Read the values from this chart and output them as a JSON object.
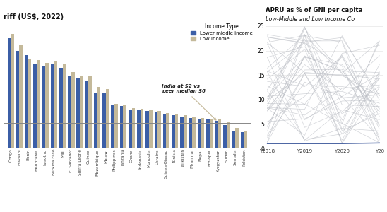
{
  "bar_title": "riff (US$, 2022)",
  "line_title": "APRU as % of GNI per capita",
  "line_subtitle": "Low-Middle and Low Income Co",
  "legend_lower_middle": "Lower middle income",
  "legend_low": "Low income",
  "annotation_text": "India at $2 vs\npeer median $6",
  "median_line_y": 6.0,
  "bar_ylim": [
    0,
    30
  ],
  "line_ylim": [
    0,
    26
  ],
  "line_yticks": [
    0,
    5,
    10,
    15,
    20,
    25
  ],
  "line_xticks": [
    "Y2018",
    "Y2019",
    "Y2020",
    "Y20"
  ],
  "countries": [
    "Congo",
    "Eswalini",
    "Bonin",
    "Mauritania",
    "Lesotho",
    "Burkina Faso",
    "Mali",
    "El Salvador",
    "Sierra Leone",
    "Guinea",
    "Mozambique",
    "Malawi",
    "Philippines",
    "Tanzania",
    "Ghana",
    "Indonesia",
    "Mongolia",
    "Ukraine",
    "Guinea-Bissau",
    "Tunisia",
    "Tajikistan",
    "Myanmar",
    "Nepal",
    "Ethiopia",
    "Kyrgyzstan",
    "Sudan",
    "Somalia",
    "Pakistan"
  ],
  "blue_values": [
    26,
    23,
    22,
    20,
    19.5,
    20,
    19,
    17,
    16.5,
    16,
    13,
    13,
    10.2,
    10,
    9.2,
    9.0,
    8.8,
    8.5,
    8.0,
    7.8,
    7.5,
    7.2,
    7.0,
    6.8,
    6.5,
    5.5,
    4.2,
    3.8
  ],
  "tan_values": [
    27,
    24.5,
    21,
    20.8,
    20.2,
    20.5,
    19.8,
    18,
    17.2,
    17,
    14.5,
    14,
    10.5,
    10.3,
    9.5,
    9.3,
    9.1,
    8.8,
    8.3,
    8.0,
    7.8,
    7.5,
    7.2,
    7.0,
    6.8,
    6.2,
    4.8,
    4.0
  ],
  "color_lower_middle": "#3B5EA6",
  "color_low": "#C4B99A",
  "background_color": "#FFFFFF",
  "line_color_gray": "#BABDC4",
  "line_color_india": "#1A3A8A",
  "median_line_color": "#888888"
}
